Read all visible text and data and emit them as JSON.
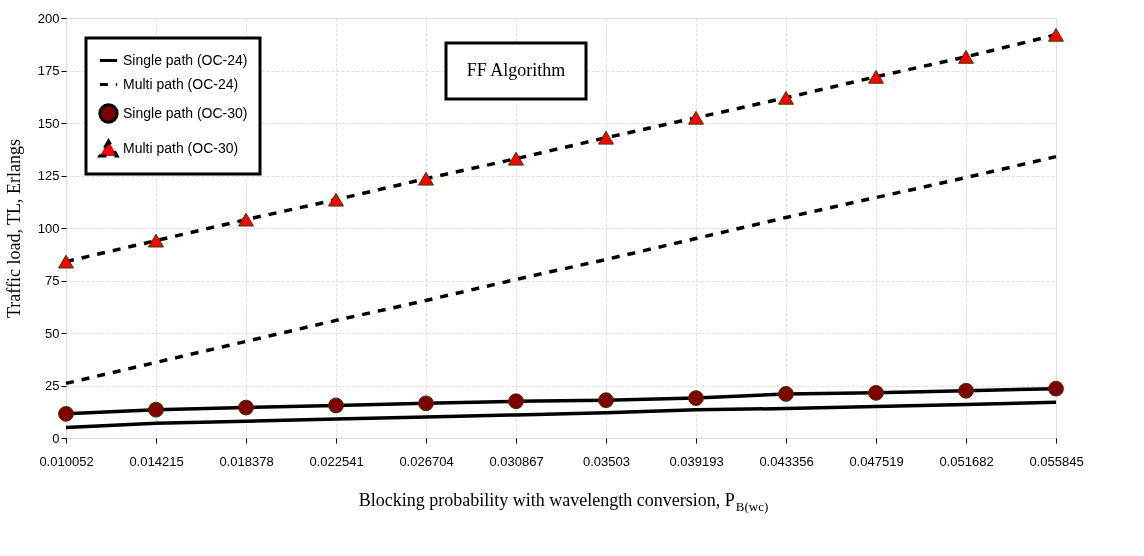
{
  "chart_data": {
    "type": "line",
    "xlabel": "Blocking probability with wavelength conversion, P$_{B(wc)}$",
    "ylabel": "Traffic load, TL, Erlangs",
    "annotations": [
      "FF Algorithm"
    ],
    "categories": [
      "0.010052",
      "0.014215",
      "0.018378",
      "0.022541",
      "0.026704",
      "0.030867",
      "0.03503",
      "0.039193",
      "0.043356",
      "0.047519",
      "0.051682",
      "0.055845"
    ],
    "ylim": [
      0,
      200
    ],
    "yticks": [
      0,
      25,
      50,
      75,
      100,
      125,
      150,
      175,
      200
    ],
    "grid": true,
    "legend": "top left",
    "series": [
      {
        "name": "Single path (OC-24)",
        "color": "#000000",
        "line_style": "solid",
        "marker": "none",
        "values": [
          5,
          7,
          8,
          9,
          10,
          11,
          12,
          13.5,
          14,
          15,
          16,
          17
        ]
      },
      {
        "name": "Multi path (OC-24)",
        "color": "#000000",
        "line_style": "dashed",
        "marker": "none",
        "values": [
          26,
          36,
          46,
          56,
          65.5,
          75.5,
          85,
          95,
          105,
          114.5,
          124,
          134
        ]
      },
      {
        "name": "Single path (OC-30)",
        "color": "#000000",
        "line_style": "solid",
        "marker": "circle",
        "values": [
          11.5,
          13.5,
          14.5,
          15.5,
          16.5,
          17.5,
          18,
          19,
          21,
          21.5,
          22.5,
          23.5
        ]
      },
      {
        "name": "Multi path (OC-30)",
        "color": "#000000",
        "line_style": "dashed",
        "marker": "triangle",
        "values": [
          84,
          94,
          104,
          113.5,
          123.5,
          133,
          143,
          152.5,
          162,
          172,
          181.5,
          192
        ]
      }
    ]
  }
}
